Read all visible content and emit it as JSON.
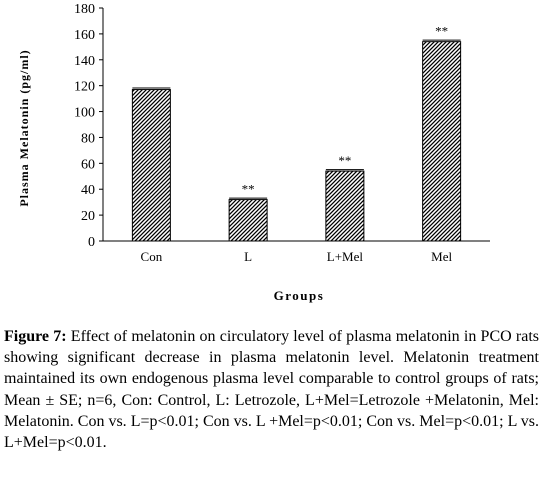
{
  "chart_data": {
    "type": "bar",
    "categories": [
      "Con",
      "L",
      "L+Mel",
      "Mel"
    ],
    "values": [
      117,
      32,
      54,
      154
    ],
    "significance": [
      "",
      "**",
      "**",
      "**"
    ],
    "xlabel": "Groups",
    "ylabel": "Plasma Melatonin (pg/ml)",
    "ylim": [
      0,
      180
    ],
    "yticks": [
      0,
      20,
      40,
      60,
      80,
      100,
      120,
      140,
      160,
      180
    ],
    "grid": false,
    "bar_fill": "diagonal-hatch",
    "bar_color": "#000000"
  },
  "caption": {
    "label": "Figure 7:",
    "text": "Effect of melatonin on circulatory level of plasma melatonin in PCO rats showing significant decrease in plasma melatonin level. Melatonin treatment maintained its own endogenous plasma level comparable to control groups of rats; Mean ± SE; n=6, Con: Control, L: Letrozole, L+Mel=Letrozole +Melatonin, Mel: Melatonin. Con vs. L=p<0.01; Con vs. L +Mel=p<0.01; Con vs. Mel=p<0.01; L vs. L+Mel=p<0.01."
  }
}
